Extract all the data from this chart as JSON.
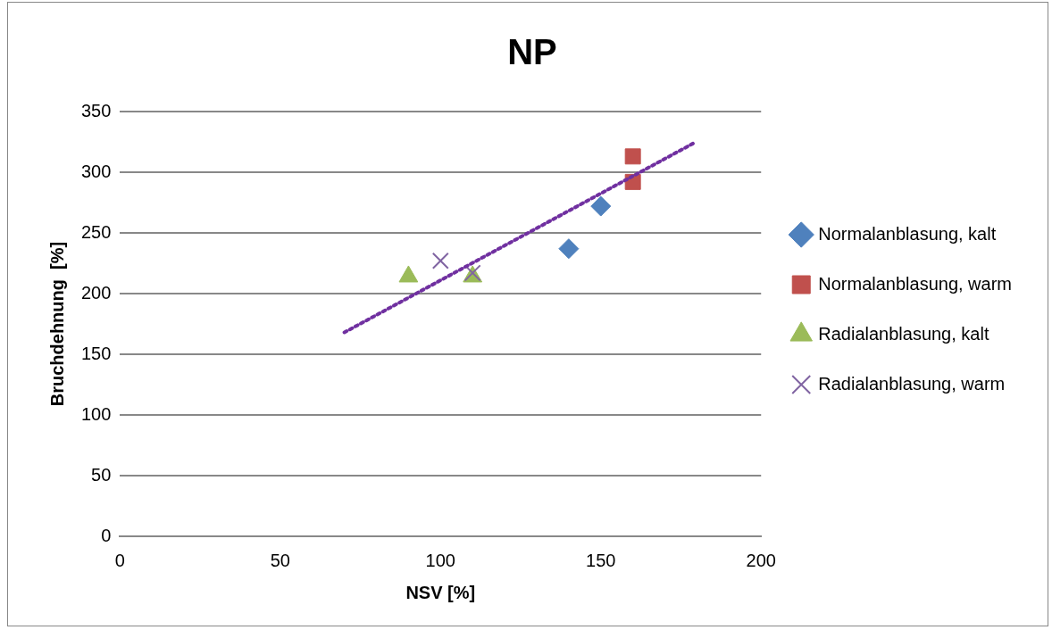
{
  "chart_data": {
    "type": "scatter",
    "title": "NP",
    "xlabel": "NSV [%]",
    "ylabel": "Bruchdehnung  [%]",
    "xlim": [
      0,
      200
    ],
    "xticks": [
      0,
      50,
      100,
      150,
      200
    ],
    "ylim": [
      0,
      350
    ],
    "yticks": [
      0,
      50,
      100,
      150,
      200,
      250,
      300,
      350
    ],
    "grid": "y",
    "legend": "right",
    "series": [
      {
        "name": "Normalanblasung, kalt",
        "color": "#4f81bd",
        "marker": "diamond",
        "x": [
          140,
          150
        ],
        "values": [
          237,
          272
        ]
      },
      {
        "name": "Normalanblasung, warm",
        "color": "#c0504d",
        "marker": "square",
        "x": [
          160,
          160
        ],
        "values": [
          313,
          292
        ]
      },
      {
        "name": "Radialanblasung, kalt",
        "color": "#9bbb59",
        "marker": "triangle",
        "x": [
          90,
          110
        ],
        "values": [
          214,
          214
        ]
      },
      {
        "name": "Radialanblasung, warm",
        "color": "#8064a2",
        "marker": "cross",
        "x": [
          100,
          110
        ],
        "values": [
          227,
          217
        ]
      },
      {
        "type": "line",
        "color": "#7030a0",
        "marker": "none",
        "line_style": "dotted",
        "x": [
          70,
          179
        ],
        "values": [
          168,
          324
        ]
      }
    ]
  }
}
